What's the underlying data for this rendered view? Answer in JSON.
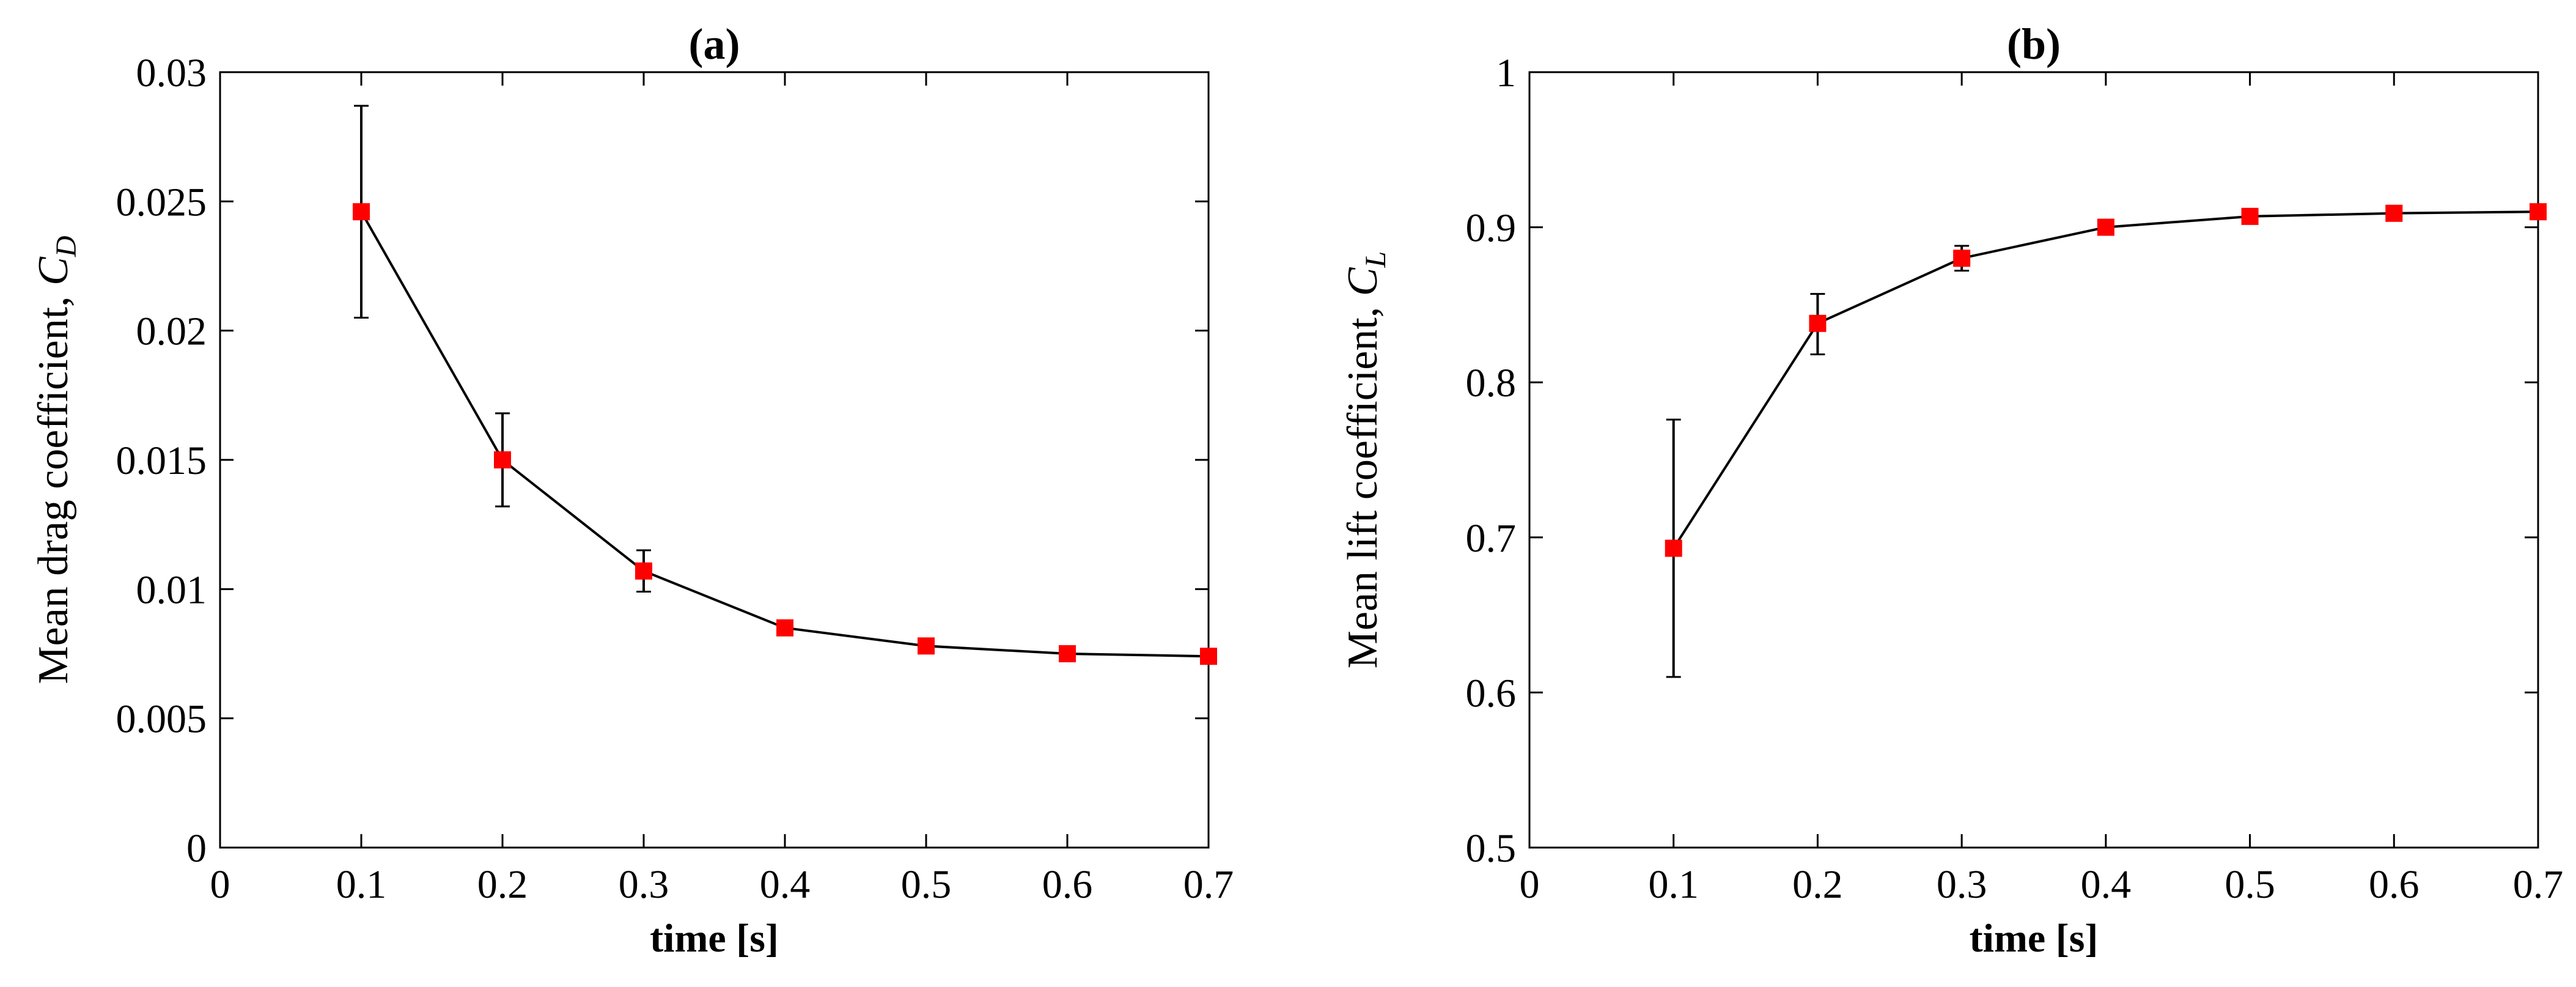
{
  "chart_data": [
    {
      "type": "line",
      "title": "(a)",
      "xlabel": "time [s]",
      "ylabel": "Mean drag coefficient, ",
      "ylabel_symbol": "C",
      "ylabel_subscript": "D",
      "xlim": [
        0,
        0.7
      ],
      "ylim": [
        0,
        0.03
      ],
      "xticks": [
        0,
        0.1,
        0.2,
        0.3,
        0.4,
        0.5,
        0.6,
        0.7
      ],
      "xtick_labels": [
        "0",
        "0.1",
        "0.2",
        "0.3",
        "0.4",
        "0.5",
        "0.6",
        "0.7"
      ],
      "yticks": [
        0,
        0.005,
        0.01,
        0.015,
        0.02,
        0.025,
        0.03
      ],
      "ytick_labels": [
        "0",
        "0.005",
        "0.01",
        "0.015",
        "0.02",
        "0.025",
        "0.03"
      ],
      "grid": false,
      "line_color": "#000000",
      "marker_color": "#ff0000",
      "series": [
        {
          "x": [
            0.1,
            0.2,
            0.3,
            0.4,
            0.5,
            0.6,
            0.7
          ],
          "y": [
            0.0246,
            0.015,
            0.0107,
            0.0085,
            0.0078,
            0.0075,
            0.0074
          ],
          "err_low": [
            0.0205,
            0.0132,
            0.0099,
            0.0083,
            0.0077,
            0.0074,
            0.0073
          ],
          "err_high": [
            0.0287,
            0.0168,
            0.0115,
            0.0087,
            0.0079,
            0.0076,
            0.0075
          ]
        }
      ]
    },
    {
      "type": "line",
      "title": "(b)",
      "xlabel": "time [s]",
      "ylabel": "Mean lift coefficient, ",
      "ylabel_symbol": "C",
      "ylabel_subscript": "L",
      "xlim": [
        0,
        0.7
      ],
      "ylim": [
        0.5,
        1
      ],
      "xticks": [
        0,
        0.1,
        0.2,
        0.3,
        0.4,
        0.5,
        0.6,
        0.7
      ],
      "xtick_labels": [
        "0",
        "0.1",
        "0.2",
        "0.3",
        "0.4",
        "0.5",
        "0.6",
        "0.7"
      ],
      "yticks": [
        0.5,
        0.6,
        0.7,
        0.8,
        0.9,
        1
      ],
      "ytick_labels": [
        "0.5",
        "0.6",
        "0.7",
        "0.8",
        "0.9",
        "1"
      ],
      "grid": false,
      "line_color": "#000000",
      "marker_color": "#ff0000",
      "series": [
        {
          "x": [
            0.1,
            0.2,
            0.3,
            0.4,
            0.5,
            0.6,
            0.7
          ],
          "y": [
            0.693,
            0.838,
            0.88,
            0.9,
            0.907,
            0.909,
            0.91
          ],
          "err_low": [
            0.61,
            0.818,
            0.872,
            0.898,
            0.906,
            0.908,
            0.909
          ],
          "err_high": [
            0.776,
            0.857,
            0.888,
            0.902,
            0.908,
            0.91,
            0.911
          ]
        }
      ]
    }
  ]
}
